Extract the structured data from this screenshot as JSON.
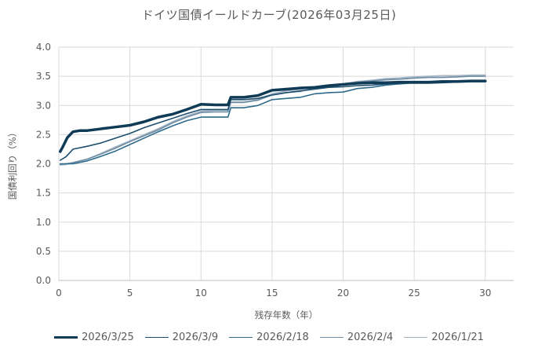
{
  "chart_data": {
    "type": "line",
    "title": "ドイツ国債イールドカーブ(2026年03月25日)",
    "xlabel": "残存年数（年）",
    "ylabel": "国債利回り（%）",
    "xlim": [
      0,
      32
    ],
    "ylim": [
      0.0,
      4.0
    ],
    "xticks": [
      0,
      5,
      10,
      15,
      20,
      25,
      30
    ],
    "yticks": [
      "0.0",
      "0.5",
      "1.0",
      "1.5",
      "2.0",
      "2.5",
      "3.0",
      "3.5",
      "4.0"
    ],
    "grid": "on",
    "legend_position": "bottom",
    "series": [
      {
        "name": "2026/3/25",
        "color": "#0f3b57",
        "width": 3.5,
        "x": [
          0.1,
          0.3,
          0.6,
          1,
          1.5,
          2,
          3,
          4,
          5,
          6,
          7,
          8,
          9,
          10,
          11,
          11.9,
          12.1,
          13,
          14,
          15,
          16,
          17,
          18,
          19,
          20,
          21,
          22,
          23,
          24,
          25,
          26,
          27,
          28,
          29,
          30
        ],
        "y": [
          2.21,
          2.3,
          2.45,
          2.55,
          2.57,
          2.57,
          2.6,
          2.63,
          2.66,
          2.72,
          2.8,
          2.85,
          2.93,
          3.02,
          3.01,
          3.01,
          3.14,
          3.14,
          3.17,
          3.26,
          3.28,
          3.3,
          3.31,
          3.34,
          3.36,
          3.38,
          3.39,
          3.39,
          3.4,
          3.4,
          3.4,
          3.41,
          3.41,
          3.42,
          3.42
        ]
      },
      {
        "name": "2026/3/9",
        "color": "#1c4e6e",
        "width": 1.6,
        "x": [
          0.1,
          0.5,
          1,
          2,
          3,
          4,
          5,
          6,
          7,
          8,
          9,
          10,
          11,
          11.9,
          12.1,
          13,
          14,
          15,
          16,
          17,
          18,
          19,
          20,
          21,
          22,
          23,
          24,
          25,
          26,
          27,
          28,
          29,
          30
        ],
        "y": [
          2.06,
          2.12,
          2.25,
          2.3,
          2.36,
          2.44,
          2.52,
          2.62,
          2.7,
          2.78,
          2.86,
          2.93,
          2.93,
          2.93,
          3.1,
          3.1,
          3.12,
          3.18,
          3.22,
          3.25,
          3.28,
          3.31,
          3.32,
          3.34,
          3.35,
          3.37,
          3.38,
          3.38,
          3.38,
          3.39,
          3.4,
          3.41,
          3.41
        ]
      },
      {
        "name": "2026/2/18",
        "color": "#2e6a8c",
        "width": 1.6,
        "x": [
          0.1,
          0.5,
          1,
          2,
          3,
          4,
          5,
          6,
          7,
          8,
          9,
          10,
          11,
          11.9,
          12.1,
          13,
          14,
          15,
          16,
          17,
          18,
          19,
          20,
          21,
          22,
          23,
          24,
          25,
          26,
          27,
          28,
          29,
          30
        ],
        "y": [
          2.0,
          2.0,
          2.0,
          2.05,
          2.13,
          2.22,
          2.33,
          2.44,
          2.55,
          2.65,
          2.74,
          2.8,
          2.8,
          2.8,
          2.96,
          2.96,
          3.0,
          3.1,
          3.12,
          3.14,
          3.2,
          3.22,
          3.23,
          3.29,
          3.31,
          3.35,
          3.37,
          3.39,
          3.4,
          3.4,
          3.41,
          3.41,
          3.42
        ]
      },
      {
        "name": "2026/2/4",
        "color": "#6f8ea6",
        "width": 1.6,
        "x": [
          0.1,
          0.5,
          1,
          2,
          3,
          4,
          5,
          6,
          7,
          8,
          9,
          10,
          11,
          11.9,
          12.1,
          13,
          14,
          15,
          16,
          17,
          18,
          19,
          20,
          21,
          22,
          23,
          24,
          25,
          26,
          27,
          28,
          29,
          30
        ],
        "y": [
          1.99,
          2.0,
          2.02,
          2.08,
          2.17,
          2.27,
          2.38,
          2.48,
          2.58,
          2.7,
          2.8,
          2.88,
          2.89,
          2.89,
          3.05,
          3.05,
          3.09,
          3.18,
          3.22,
          3.24,
          3.3,
          3.32,
          3.35,
          3.4,
          3.42,
          3.44,
          3.45,
          3.47,
          3.48,
          3.48,
          3.49,
          3.5,
          3.5
        ]
      },
      {
        "name": "2026/1/21",
        "color": "#a7b6c4",
        "width": 1.8,
        "x": [
          0.1,
          0.5,
          1,
          2,
          3,
          4,
          5,
          6,
          7,
          8,
          9,
          10,
          11,
          11.9,
          12.1,
          13,
          14,
          15,
          16,
          17,
          18,
          19,
          20,
          21,
          22,
          23,
          24,
          25,
          26,
          27,
          28,
          29,
          30
        ],
        "y": [
          1.98,
          1.99,
          2.02,
          2.08,
          2.18,
          2.29,
          2.39,
          2.5,
          2.6,
          2.72,
          2.82,
          2.9,
          2.92,
          2.92,
          3.06,
          3.06,
          3.1,
          3.2,
          3.25,
          3.28,
          3.32,
          3.35,
          3.37,
          3.41,
          3.43,
          3.46,
          3.47,
          3.49,
          3.5,
          3.51,
          3.51,
          3.52,
          3.52
        ]
      }
    ]
  }
}
